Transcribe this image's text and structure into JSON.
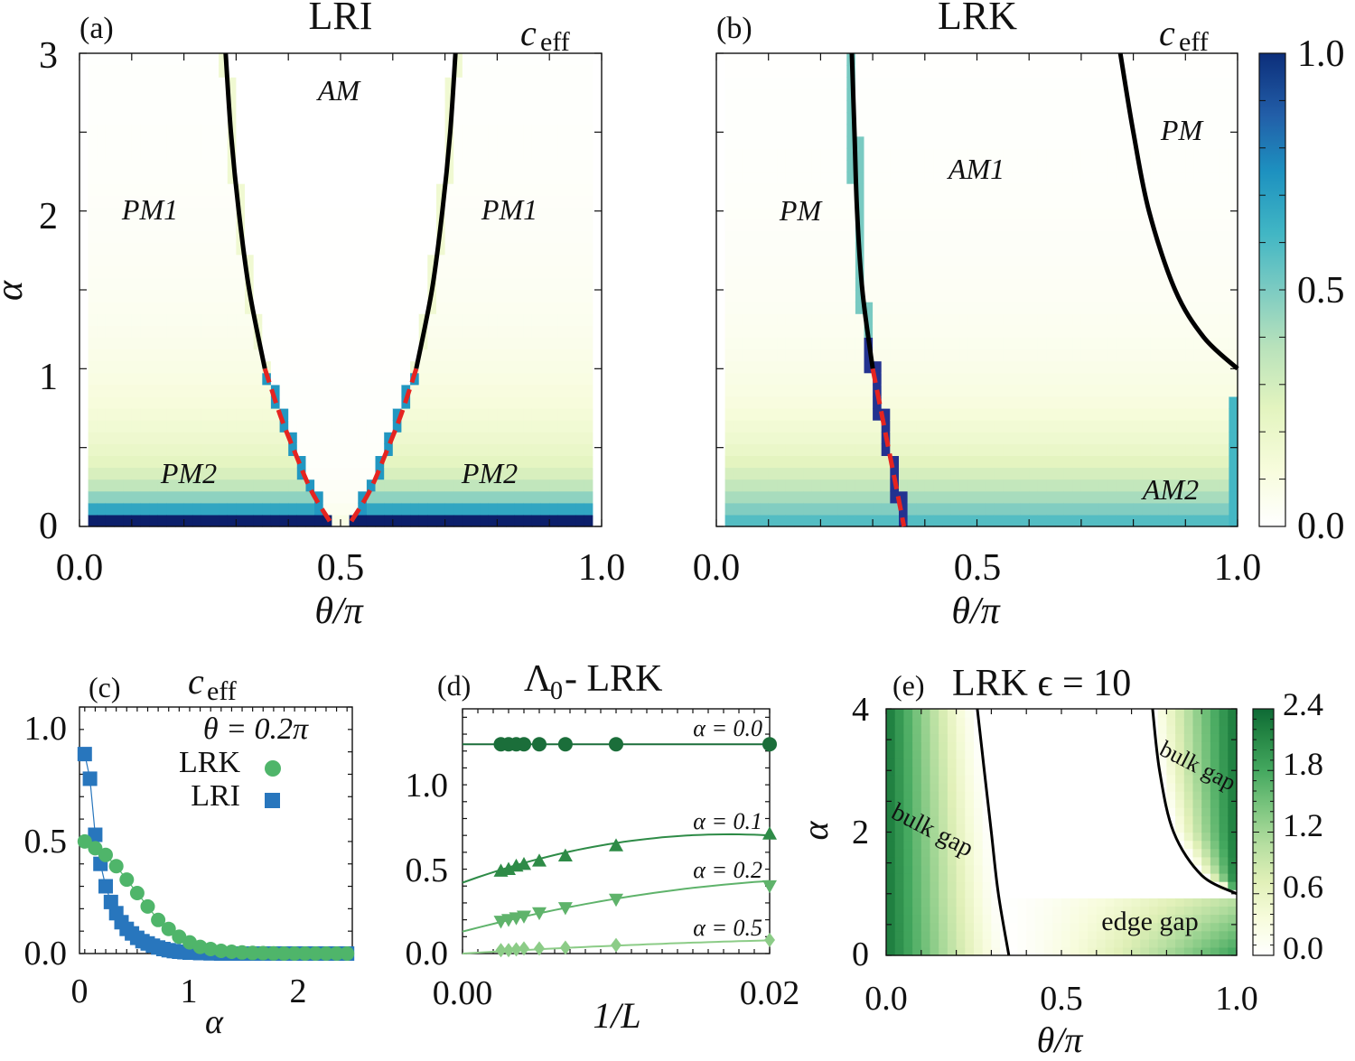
{
  "figure": {
    "panels": [
      {
        "id": "a",
        "label": "(a)",
        "title": "LRI",
        "corner_label": "c",
        "corner_sub": "eff"
      },
      {
        "id": "b",
        "label": "(b)",
        "title": "LRK",
        "corner_label": "c",
        "corner_sub": "eff"
      },
      {
        "id": "c",
        "label": "(c)",
        "title": "c",
        "title_sub": "eff"
      },
      {
        "id": "d",
        "label": "(d)",
        "title": "Λ",
        "title_sub": "0",
        "title_rest": " - LRK"
      },
      {
        "id": "e",
        "label": "(e)",
        "title": "LRK ϵ = 10"
      }
    ],
    "axis_texts": {
      "theta_pi": "θ/π",
      "alpha": "α",
      "inv_L": "1/L"
    },
    "colors": {
      "cmap_blue": [
        "#ffffff",
        "#f7fcdc",
        "#e3f4bf",
        "#b8e2bb",
        "#7ccbc2",
        "#41b6c4",
        "#1d91c0",
        "#225ea8",
        "#253494",
        "#0c1f6b"
      ],
      "cmap_green": [
        "#ffffff",
        "#f7fcdc",
        "#e1f0b8",
        "#b5dea0",
        "#7cc57f",
        "#44a85f",
        "#238443",
        "#0e6a35"
      ],
      "lri_blue": "#2876bd",
      "lrk_green": "#4fb56a",
      "phase_line": "#000000",
      "dashed_red": "#e52420",
      "d_dark": "#1b6e3a",
      "d_mid": "#2e8b47",
      "d_light": "#5fb36b",
      "d_lighter": "#8ccc87"
    }
  },
  "chart_data": [
    {
      "type": "heatmap",
      "panel": "a",
      "title": "LRI",
      "xlabel": "θ/π",
      "ylabel": "α",
      "xlim": [
        0,
        1
      ],
      "ylim": [
        0,
        3
      ],
      "xticks": [
        "0.0",
        "0.5",
        "1.0"
      ],
      "yticks": [
        "0",
        "1",
        "2",
        "3"
      ],
      "regions": [
        "PM1",
        "AM",
        "PM1",
        "PM2",
        "PM2"
      ],
      "left_boundary_solid": [
        [
          0.28,
          3.0
        ],
        [
          0.29,
          2.5
        ],
        [
          0.305,
          2.0
        ],
        [
          0.325,
          1.5
        ],
        [
          0.355,
          1.0
        ]
      ],
      "left_boundary_dashed": [
        [
          0.355,
          1.0
        ],
        [
          0.385,
          0.7
        ],
        [
          0.415,
          0.45
        ],
        [
          0.445,
          0.22
        ],
        [
          0.48,
          0.03
        ]
      ],
      "right_boundary_solid": [
        [
          0.72,
          3.0
        ],
        [
          0.71,
          2.5
        ],
        [
          0.695,
          2.0
        ],
        [
          0.675,
          1.5
        ],
        [
          0.645,
          1.0
        ]
      ],
      "right_boundary_dashed": [
        [
          0.645,
          1.0
        ],
        [
          0.615,
          0.7
        ],
        [
          0.585,
          0.45
        ],
        [
          0.555,
          0.22
        ],
        [
          0.52,
          0.03
        ]
      ]
    },
    {
      "type": "heatmap",
      "panel": "b",
      "title": "LRK",
      "xlabel": "θ/π",
      "xlim": [
        0,
        1
      ],
      "ylim": [
        0,
        3
      ],
      "xticks": [
        "0.0",
        "0.5",
        "1.0"
      ],
      "regions": [
        "PM",
        "AM1",
        "PM",
        "AM2"
      ],
      "left_boundary_solid": [
        [
          0.26,
          3.0
        ],
        [
          0.265,
          2.5
        ],
        [
          0.27,
          2.0
        ],
        [
          0.28,
          1.5
        ],
        [
          0.3,
          1.0
        ]
      ],
      "left_boundary_dashed": [
        [
          0.3,
          1.0
        ],
        [
          0.315,
          0.75
        ],
        [
          0.33,
          0.5
        ],
        [
          0.345,
          0.25
        ],
        [
          0.36,
          0.0
        ]
      ],
      "right_boundary_solid": [
        [
          0.775,
          3.0
        ],
        [
          0.8,
          2.5
        ],
        [
          0.83,
          2.0
        ],
        [
          0.88,
          1.5
        ],
        [
          0.935,
          1.2
        ],
        [
          1.0,
          1.0
        ]
      ],
      "colorbar": {
        "ticks": [
          "0.0",
          "0.5",
          "1.0"
        ],
        "range": [
          0,
          1
        ]
      }
    },
    {
      "type": "scatter",
      "panel": "c",
      "title": "c_eff",
      "annotation": "θ = 0.2π",
      "xlabel": "α",
      "xlim": [
        -0.05,
        2.55
      ],
      "ylim": [
        0,
        1.1
      ],
      "xticks": [
        "0",
        "1",
        "2"
      ],
      "yticks": [
        "0.0",
        "0.5",
        "1.0"
      ],
      "series": [
        {
          "name": "LRK",
          "marker": "circle",
          "x": [
            0.0,
            0.1,
            0.2,
            0.3,
            0.4,
            0.5,
            0.6,
            0.7,
            0.8,
            0.9,
            1.0,
            1.1,
            1.2,
            1.3,
            1.4,
            1.5,
            1.6,
            1.7,
            1.8,
            1.9,
            2.0,
            2.1,
            2.2,
            2.3,
            2.4,
            2.5
          ],
          "y": [
            0.5,
            0.47,
            0.44,
            0.39,
            0.33,
            0.27,
            0.21,
            0.15,
            0.11,
            0.075,
            0.05,
            0.03,
            0.02,
            0.012,
            0.008,
            0.005,
            0.003,
            0.002,
            0.001,
            0.0,
            0.0,
            0.0,
            0.0,
            0.0,
            0.0,
            0.0
          ]
        },
        {
          "name": "LRI",
          "marker": "square",
          "x": [
            0.0,
            0.05,
            0.1,
            0.15,
            0.2,
            0.25,
            0.3,
            0.35,
            0.4,
            0.45,
            0.5,
            0.55,
            0.6,
            0.65,
            0.7,
            0.75,
            0.8,
            0.85,
            0.9,
            0.95,
            1.0,
            1.1,
            1.2,
            1.3,
            1.4,
            1.5,
            1.6,
            1.7,
            1.8,
            1.9,
            2.0,
            2.1,
            2.2,
            2.3,
            2.4,
            2.5
          ],
          "y": [
            0.89,
            0.78,
            0.53,
            0.4,
            0.3,
            0.23,
            0.18,
            0.14,
            0.11,
            0.09,
            0.07,
            0.055,
            0.045,
            0.035,
            0.027,
            0.02,
            0.015,
            0.011,
            0.008,
            0.006,
            0.004,
            0.002,
            0.001,
            0.0,
            0.0,
            0.0,
            0.0,
            0.0,
            0.0,
            0.0,
            0.0,
            0.0,
            0.0,
            0.0,
            0.0,
            0.0
          ]
        }
      ]
    },
    {
      "type": "scatter",
      "panel": "d",
      "title": "Λ0 - LRK",
      "xlabel": "1/L",
      "xlim": [
        0,
        0.02
      ],
      "ylim": [
        0,
        1.45
      ],
      "xticks": [
        "0.00",
        "0.02"
      ],
      "yticks": [
        "0.0",
        "0.5",
        "1.0"
      ],
      "x": [
        0.0025,
        0.003,
        0.0035,
        0.004,
        0.005,
        0.0067,
        0.01,
        0.02
      ],
      "series": [
        {
          "name": "α = 0.0",
          "marker": "circle",
          "values": [
            1.24,
            1.24,
            1.24,
            1.24,
            1.24,
            1.24,
            1.24,
            1.24
          ],
          "fit": [
            1.24,
            0.0,
            0.0
          ]
        },
        {
          "name": "α = 0.1",
          "marker": "triangle-up",
          "values": [
            0.49,
            0.5,
            0.52,
            0.53,
            0.55,
            0.58,
            0.64,
            0.71
          ],
          "fit": [
            0.42,
            33.0,
            -950.0
          ]
        },
        {
          "name": "α = 0.2",
          "marker": "triangle-down",
          "values": [
            0.19,
            0.2,
            0.21,
            0.22,
            0.24,
            0.27,
            0.32,
            0.4
          ],
          "fit": [
            0.13,
            24.0,
            -450.0
          ]
        },
        {
          "name": "α = 0.5",
          "marker": "diamond",
          "values": [
            0.02,
            0.02,
            0.025,
            0.03,
            0.03,
            0.035,
            0.05,
            0.08
          ],
          "fit": [
            0.0,
            5.5,
            -80.0
          ]
        }
      ]
    },
    {
      "type": "heatmap",
      "panel": "e",
      "title": "LRK ϵ = 10",
      "xlabel": "θ/π",
      "ylabel": "α",
      "xlim": [
        0,
        1
      ],
      "ylim": [
        0,
        4
      ],
      "xticks": [
        "0.0",
        "0.5",
        "1.0"
      ],
      "yticks": [
        "0",
        "2",
        "4"
      ],
      "annotations": [
        "bulk gap",
        "bulk gap",
        "edge gap"
      ],
      "left_boundary": [
        [
          0.26,
          4.0
        ],
        [
          0.28,
          3.0
        ],
        [
          0.3,
          2.0
        ],
        [
          0.32,
          1.0
        ],
        [
          0.35,
          0.0
        ]
      ],
      "right_boundary": [
        [
          0.76,
          4.0
        ],
        [
          0.78,
          3.0
        ],
        [
          0.82,
          2.0
        ],
        [
          0.9,
          1.3
        ],
        [
          1.0,
          1.0
        ]
      ],
      "colorbar": {
        "ticks": [
          "0.0",
          "0.6",
          "1.2",
          "1.8",
          "2.4"
        ],
        "range": [
          0,
          2.4
        ]
      }
    }
  ]
}
